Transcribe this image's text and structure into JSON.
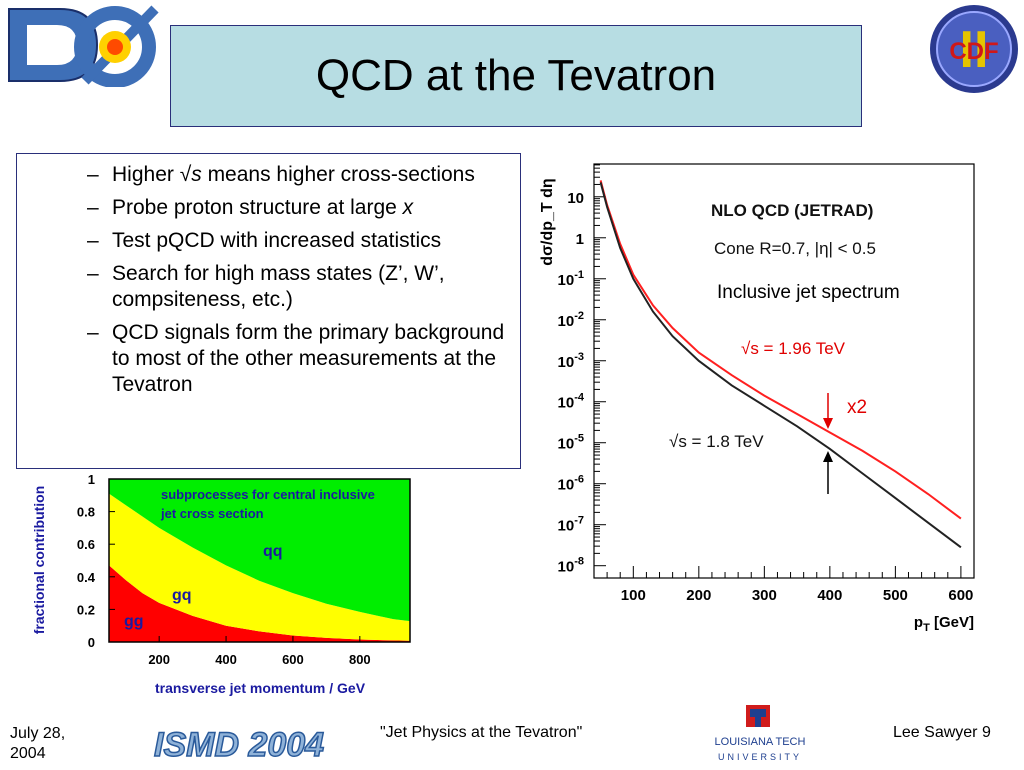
{
  "title": "QCD at the Tevatron",
  "bullets": [
    {
      "pre": "Higher √",
      "em": "s",
      "post": " means higher cross-sections"
    },
    {
      "pre": "Probe proton structure at large ",
      "em": "x",
      "post": ""
    },
    {
      "pre": "Test pQCD with increased statistics",
      "em": "",
      "post": ""
    },
    {
      "pre": "Search for high mass states (Z’, W’, compsiteness, etc.)",
      "em": "",
      "post": ""
    },
    {
      "pre": "QCD signals form the primary background to most of the other measurements at the Tevatron",
      "em": "",
      "post": ""
    }
  ],
  "bullet_dash": "–",
  "logos": {
    "d0": "DØ",
    "cdf": "CDF",
    "cdf_numeral": "II",
    "ismd": "ISMD 2004",
    "latech_line1": "LOUISIANA TECH",
    "latech_line2": "UNIVERSITY"
  },
  "footer": {
    "date": "July 28, 2004",
    "talk": "\"Jet Physics at the Tevatron\"",
    "author_page": "Lee Sawyer 9"
  },
  "colors": {
    "title_bg": "#b7dde3",
    "border": "#2a2f7a",
    "red": "#ff0000",
    "yellow": "#ffff00",
    "green": "#00ee00",
    "curve_red": "#ff2020"
  },
  "chart_data": [
    {
      "type": "area",
      "title": "subprocesses for central inclusive jet cross section",
      "xlabel": "transverse jet momentum / GeV",
      "ylabel": "fractional contribution",
      "xlim": [
        50,
        950
      ],
      "ylim": [
        0,
        1
      ],
      "x_ticks": [
        "200",
        "400",
        "600",
        "800"
      ],
      "y_ticks": [
        "0",
        "0.2",
        "0.4",
        "0.6",
        "0.8",
        "1"
      ],
      "x": [
        50,
        100,
        150,
        200,
        300,
        400,
        500,
        600,
        700,
        800,
        900,
        950
      ],
      "series": [
        {
          "name": "gg",
          "values": [
            0.47,
            0.38,
            0.3,
            0.24,
            0.16,
            0.1,
            0.065,
            0.04,
            0.025,
            0.015,
            0.01,
            0.008
          ]
        },
        {
          "name": "gq",
          "values": [
            0.44,
            0.46,
            0.47,
            0.46,
            0.42,
            0.37,
            0.31,
            0.26,
            0.21,
            0.17,
            0.13,
            0.12
          ]
        },
        {
          "name": "qq",
          "values": [
            0.09,
            0.16,
            0.23,
            0.3,
            0.42,
            0.53,
            0.625,
            0.7,
            0.765,
            0.815,
            0.86,
            0.872
          ]
        }
      ]
    },
    {
      "type": "line",
      "title": "NLO QCD (JETRAD)",
      "subtitle": "Cone R=0.7, |η| < 0.5",
      "annotation": "Inclusive jet spectrum",
      "ratio_label": "x2",
      "xlabel": "p_T [GeV]",
      "ylabel": "dσ/dp_T dη",
      "xlim": [
        40,
        620
      ],
      "ylim_log10": [
        -8.3,
        1.8
      ],
      "log_y": true,
      "x_ticks": [
        "100",
        "200",
        "300",
        "400",
        "500",
        "600"
      ],
      "y_ticks": [
        "10",
        "1",
        "10-1",
        "10-2",
        "10-3",
        "10-4",
        "10-5",
        "10-6",
        "10-7",
        "10-8"
      ],
      "series": [
        {
          "name": "√s = 1.96 TeV",
          "x": [
            50,
            60,
            80,
            100,
            130,
            160,
            200,
            250,
            300,
            350,
            400,
            450,
            500,
            550,
            600
          ],
          "log10_y": [
            1.4,
            0.8,
            -0.15,
            -0.9,
            -1.65,
            -2.2,
            -2.8,
            -3.35,
            -3.85,
            -4.3,
            -4.75,
            -5.2,
            -5.7,
            -6.25,
            -6.85
          ]
        },
        {
          "name": "√s = 1.8 TeV",
          "x": [
            50,
            60,
            80,
            100,
            130,
            160,
            200,
            250,
            300,
            350,
            400,
            450,
            500,
            550,
            600
          ],
          "log10_y": [
            1.35,
            0.75,
            -0.25,
            -1.0,
            -1.8,
            -2.4,
            -3.0,
            -3.6,
            -4.1,
            -4.6,
            -5.15,
            -5.75,
            -6.35,
            -6.95,
            -7.55
          ]
        }
      ]
    }
  ]
}
